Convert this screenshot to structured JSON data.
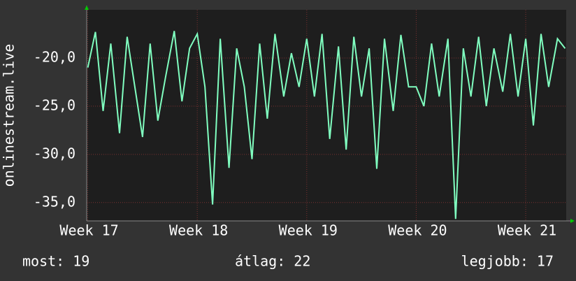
{
  "chart_data": {
    "type": "line",
    "y_label": "onlinestream.live",
    "x": [
      17.0,
      17.07,
      17.14,
      17.21,
      17.29,
      17.36,
      17.43,
      17.5,
      17.57,
      17.64,
      17.71,
      17.79,
      17.86,
      17.93,
      18.0,
      18.07,
      18.14,
      18.21,
      18.29,
      18.36,
      18.43,
      18.5,
      18.57,
      18.64,
      18.71,
      18.79,
      18.86,
      18.93,
      19.0,
      19.07,
      19.14,
      19.21,
      19.29,
      19.36,
      19.43,
      19.5,
      19.57,
      19.64,
      19.71,
      19.79,
      19.86,
      19.93,
      20.0,
      20.07,
      20.14,
      20.21,
      20.29,
      20.36,
      20.43,
      20.5,
      20.57,
      20.64,
      20.71,
      20.79,
      20.86,
      20.93,
      21.0,
      21.07,
      21.14,
      21.21,
      21.29,
      21.36
    ],
    "series": [
      {
        "name": "onlinestream.live",
        "color": "#80ffc0",
        "values": [
          -21,
          -17.3,
          -25.5,
          -18.5,
          -27.8,
          -17.8,
          -23,
          -28.2,
          -18.5,
          -26.5,
          -22,
          -17.2,
          -24.5,
          -19,
          -17.5,
          -23,
          -35.2,
          -18,
          -31.4,
          -19,
          -23,
          -30.5,
          -18.5,
          -26.3,
          -17.5,
          -24,
          -19.5,
          -23,
          -18,
          -24,
          -17.5,
          -28.4,
          -18.8,
          -29.5,
          -17.8,
          -24,
          -19,
          -31.5,
          -18,
          -25.5,
          -17.6,
          -23,
          -23,
          -25,
          -18.5,
          -24,
          -18,
          -36.7,
          -19,
          -24,
          -17.8,
          -25,
          -19,
          -23.5,
          -17.5,
          -24,
          -18,
          -27,
          -17.5,
          -23,
          -18,
          -19
        ]
      }
    ],
    "xlim": [
      16.99,
      21.37
    ],
    "xticks": [
      {
        "value": 17,
        "label": "Week 17"
      },
      {
        "value": 18,
        "label": "Week 18"
      },
      {
        "value": 19,
        "label": "Week 19"
      },
      {
        "value": 20,
        "label": "Week 20"
      },
      {
        "value": 21,
        "label": "Week 21"
      }
    ],
    "ylim": [
      -36.9,
      -15
    ],
    "yticks": [
      {
        "value": -20,
        "label": "-20,0"
      },
      {
        "value": -25,
        "label": "-25,0"
      },
      {
        "value": -30,
        "label": "-30,0"
      },
      {
        "value": -35,
        "label": "-35,0"
      }
    ],
    "grid": true,
    "footer": [
      "most: 19",
      "átlag: 22",
      "legjobb: 17"
    ]
  }
}
